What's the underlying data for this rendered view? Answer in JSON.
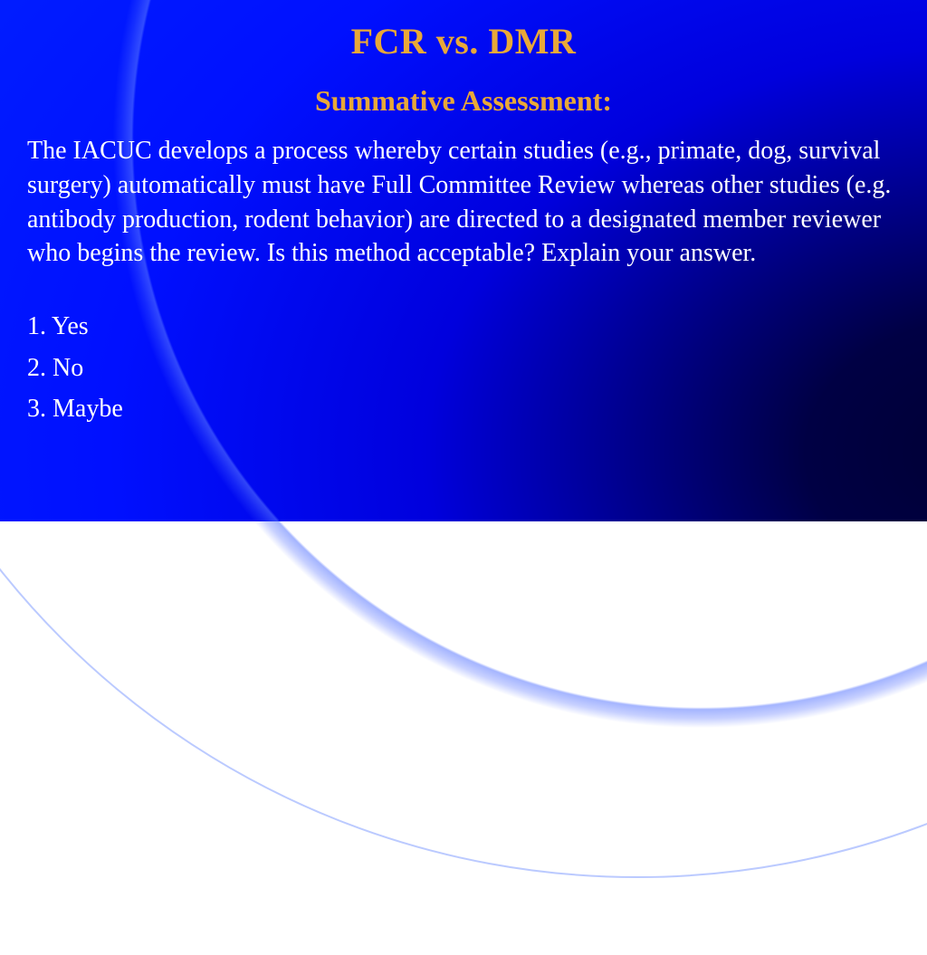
{
  "colors": {
    "title_color": "#e8a838",
    "subtitle_color": "#e8a838",
    "body_color": "#ffffff",
    "option_color": "#ffffff"
  },
  "title": "FCR vs. DMR",
  "subtitle": "Summative Assessment:",
  "body": "The IACUC develops a process whereby certain studies (e.g., primate, dog, survival surgery) automatically must have Full Committee Review whereas other studies (e.g. antibody production, rodent behavior) are directed to a designated member reviewer who begins the review. Is this method acceptable? Explain your answer.",
  "options": [
    "1. Yes",
    "2. No",
    "3. Maybe"
  ]
}
